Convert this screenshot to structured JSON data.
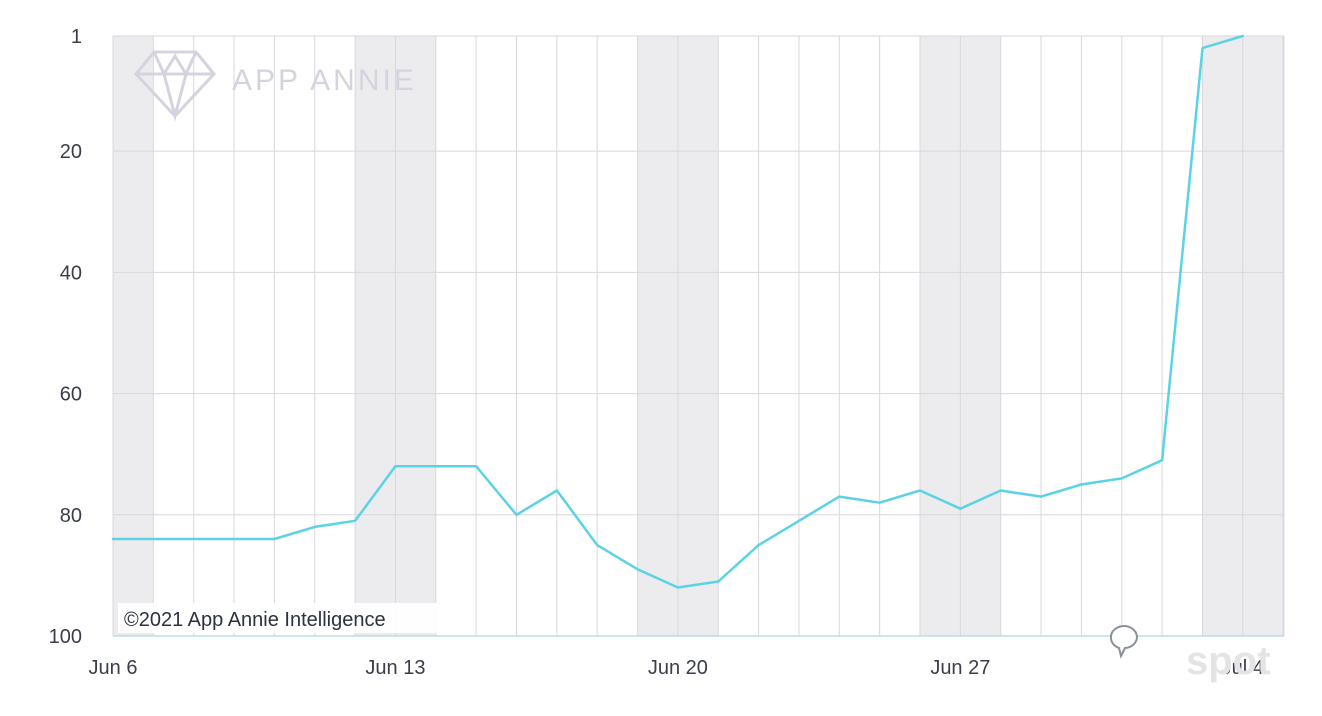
{
  "chart_data": {
    "type": "line",
    "title": "",
    "xlabel": "",
    "ylabel": "",
    "x_tick_labels": [
      "Jun 6",
      "Jun 13",
      "Jun 20",
      "Jun 27",
      "Jul 4"
    ],
    "y_tick_labels": [
      "1",
      "20",
      "40",
      "60",
      "80",
      "100"
    ],
    "ylim": [
      1,
      100
    ],
    "y_reversed": true,
    "xlim": [
      "Jun 6",
      "Jul 5"
    ],
    "grid": true,
    "weekend_bands": [
      [
        "Jun 6",
        "Jun 7"
      ],
      [
        "Jun 12",
        "Jun 14"
      ],
      [
        "Jun 19",
        "Jun 21"
      ],
      [
        "Jun 26",
        "Jun 28"
      ],
      [
        "Jul 3",
        "Jul 5"
      ]
    ],
    "line_color": "#5bd3e5",
    "x": [
      "Jun 6",
      "Jun 7",
      "Jun 8",
      "Jun 9",
      "Jun 10",
      "Jun 11",
      "Jun 12",
      "Jun 13",
      "Jun 14",
      "Jun 15",
      "Jun 16",
      "Jun 17",
      "Jun 18",
      "Jun 19",
      "Jun 20",
      "Jun 21",
      "Jun 22",
      "Jun 23",
      "Jun 24",
      "Jun 25",
      "Jun 26",
      "Jun 27",
      "Jun 28",
      "Jun 29",
      "Jun 30",
      "Jul 1",
      "Jul 2",
      "Jul 3",
      "Jul 4"
    ],
    "series": [
      {
        "values": [
          84,
          84,
          84,
          84,
          84,
          82,
          81,
          72,
          72,
          72,
          80,
          76,
          85,
          89,
          92,
          91,
          85,
          81,
          77,
          78,
          76,
          79,
          76,
          77,
          75,
          74,
          71,
          3,
          1
        ]
      }
    ]
  },
  "watermark": {
    "brand": "APP ANNIE",
    "icon": "diamond-logo-icon"
  },
  "copyright": "©2021 App Annie Intelligence",
  "corner_watermark": "spot",
  "tooltip_icon": "speech-bubble-icon"
}
